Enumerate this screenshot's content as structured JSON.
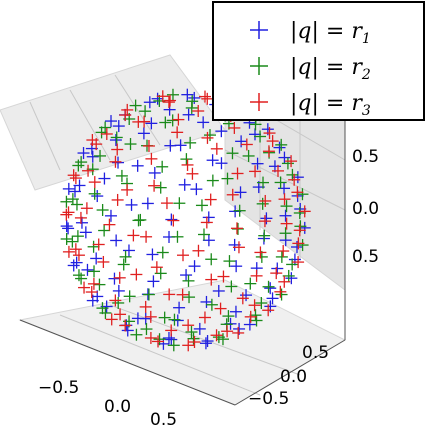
{
  "chart_data": {
    "type": "scatter",
    "projection": "3d",
    "grid": true,
    "legend_position": "upper-right",
    "series": [
      {
        "name_base": "|q| = r",
        "name_sub": "1",
        "color": "#2020e0",
        "marker": "plus",
        "radius": 0.8
      },
      {
        "name_base": "|q| = r",
        "name_sub": "2",
        "color": "#1a8a1a",
        "marker": "plus",
        "radius": 0.8
      },
      {
        "name_base": "|q| = r",
        "name_sub": "3",
        "color": "#e02020",
        "marker": "plus",
        "radius": 0.8
      }
    ],
    "points_per_series": 110,
    "x_ticks": [
      "−0.5",
      "0.0",
      "0.5"
    ],
    "y_ticks": [
      "0.5",
      "0.0",
      "−0.5"
    ],
    "z_ticks": [
      "0.5",
      "0.0",
      "0.5"
    ],
    "xlim": [
      -1,
      1
    ],
    "ylim": [
      -1,
      1
    ],
    "zlim": [
      -1,
      1
    ]
  }
}
